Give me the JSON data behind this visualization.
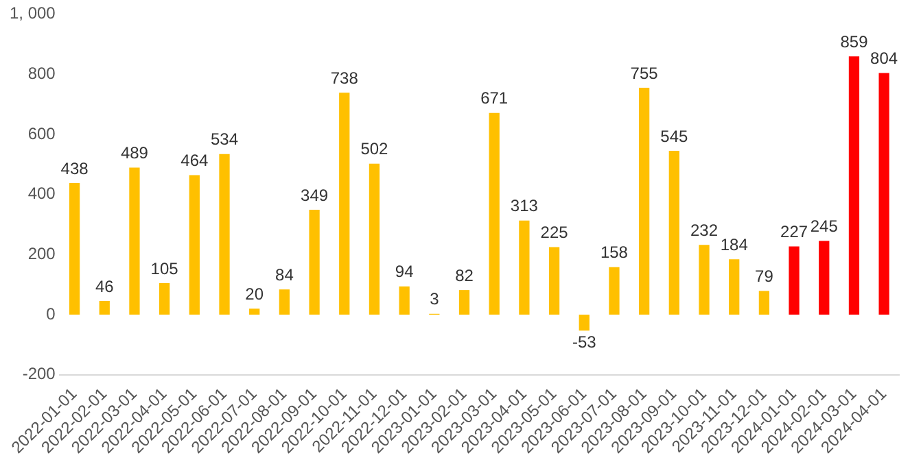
{
  "chart_data": {
    "type": "bar",
    "categories": [
      "2022-01-01",
      "2022-02-01",
      "2022-03-01",
      "2022-04-01",
      "2022-05-01",
      "2022-06-01",
      "2022-07-01",
      "2022-08-01",
      "2022-09-01",
      "2022-10-01",
      "2022-11-01",
      "2022-12-01",
      "2023-01-01",
      "2023-02-01",
      "2023-03-01",
      "2023-04-01",
      "2023-05-01",
      "2023-06-01",
      "2023-07-01",
      "2023-08-01",
      "2023-09-01",
      "2023-10-01",
      "2023-11-01",
      "2023-12-01",
      "2024-01-01",
      "2024-02-01",
      "2024-03-01",
      "2024-04-01"
    ],
    "values": [
      438,
      46,
      489,
      105,
      464,
      534,
      20,
      84,
      349,
      738,
      502,
      94,
      3,
      82,
      671,
      313,
      225,
      -53,
      158,
      755,
      545,
      232,
      184,
      79,
      227,
      245,
      859,
      804
    ],
    "colors": [
      "#ffc000",
      "#ffc000",
      "#ffc000",
      "#ffc000",
      "#ffc000",
      "#ffc000",
      "#ffc000",
      "#ffc000",
      "#ffc000",
      "#ffc000",
      "#ffc000",
      "#ffc000",
      "#ffc000",
      "#ffc000",
      "#ffc000",
      "#ffc000",
      "#ffc000",
      "#ffc000",
      "#ffc000",
      "#ffc000",
      "#ffc000",
      "#ffc000",
      "#ffc000",
      "#ffc000",
      "#ff0000",
      "#ff0000",
      "#ff0000",
      "#ff0000"
    ],
    "ylim": [
      -200,
      1000
    ],
    "yticks": [
      -200,
      0,
      200,
      400,
      600,
      800,
      {
        "value": 1000,
        "label": "1, 000"
      }
    ],
    "data_labels": true,
    "grid": false,
    "legend": false
  }
}
